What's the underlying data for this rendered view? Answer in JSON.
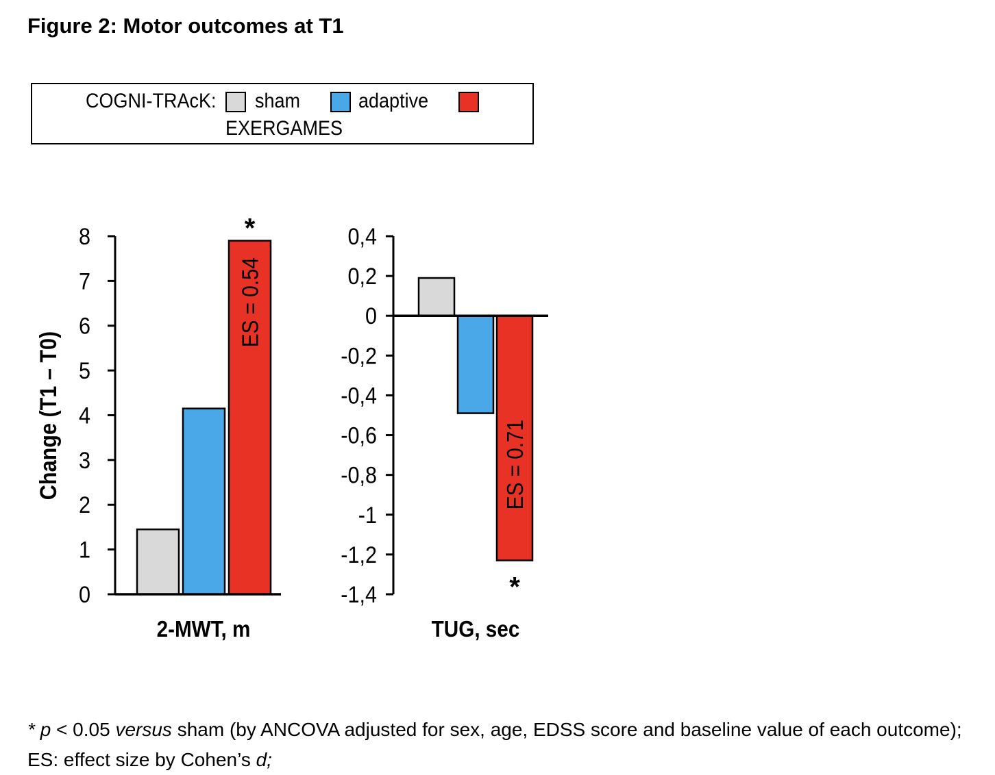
{
  "title": "Figure 2: Motor outcomes at T1",
  "legend": {
    "label": "COGNI-TRAcK:",
    "items": [
      {
        "name": "sham",
        "color": "#d9d9d9"
      },
      {
        "name": "adaptive",
        "color": "#4aa8e8"
      },
      {
        "name": "",
        "color": "#e83226"
      }
    ],
    "second_line": "EXERGAMES"
  },
  "chart_data": [
    {
      "type": "bar",
      "xlabel": "2-MWT, m",
      "ylabel": "Change (T1 – T0)",
      "ylim": [
        0,
        8
      ],
      "yticks": [
        0,
        1,
        2,
        3,
        4,
        5,
        6,
        7,
        8
      ],
      "ytick_labels": [
        "0",
        "1",
        "2",
        "3",
        "4",
        "5",
        "6",
        "7",
        "8"
      ],
      "series": [
        {
          "name": "sham",
          "value": 1.45,
          "color": "#d9d9d9"
        },
        {
          "name": "adaptive",
          "value": 4.15,
          "color": "#4aa8e8"
        },
        {
          "name": "EXERGAMES",
          "value": 7.9,
          "color": "#e83226",
          "annotation": "ES = 0.54",
          "significant": true
        }
      ]
    },
    {
      "type": "bar",
      "xlabel": "TUG, sec",
      "ylim": [
        -1.4,
        0.4
      ],
      "yticks": [
        -1.4,
        -1.2,
        -1.0,
        -0.8,
        -0.6,
        -0.4,
        -0.2,
        0,
        0.2,
        0.4
      ],
      "ytick_labels": [
        "-1,4",
        "-1,2",
        "-1",
        "-0,8",
        "-0,6",
        "-0,4",
        "-0,2",
        "0",
        "0,2",
        "0,4"
      ],
      "series": [
        {
          "name": "sham",
          "value": 0.19,
          "color": "#d9d9d9"
        },
        {
          "name": "adaptive",
          "value": -0.49,
          "color": "#4aa8e8"
        },
        {
          "name": "EXERGAMES",
          "value": -1.23,
          "color": "#e83226",
          "annotation": "ES = 0.71",
          "significant": true
        }
      ]
    }
  ],
  "significance_marker": "*",
  "footnote": {
    "star": "*",
    "p": "p",
    "text1": " < 0.05 ",
    "versus": "versus",
    "text2": " sham (by ANCOVA adjusted for sex, age, EDSS score and baseline value of each outcome); ES: effect size by Cohen’s ",
    "d": "d;"
  }
}
